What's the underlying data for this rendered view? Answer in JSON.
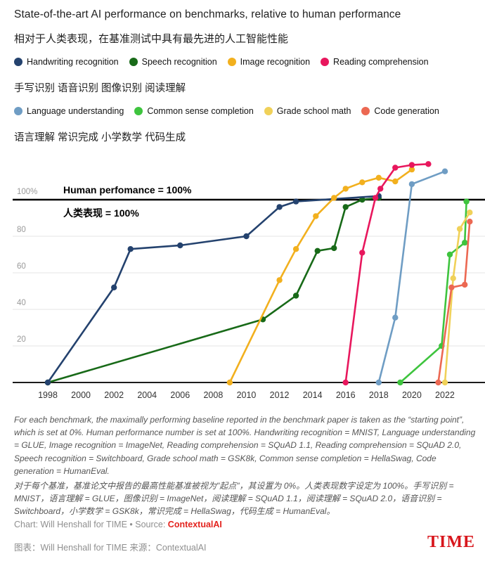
{
  "title": "State-of-the-art AI performance on benchmarks, relative to human performance",
  "title_cn": "相对于人类表现，在基准测试中具有最先进的人工智能性能",
  "legend": {
    "row1": [
      "Handwriting recognition",
      "Speech recognition",
      "Image recognition",
      "Reading comprehension"
    ],
    "row1_cn": "手写识别 语音识别 图像识别 阅读理解",
    "row2": [
      "Language understanding",
      "Common sense completion",
      "Grade school math",
      "Code generation"
    ],
    "row2_cn": "语言理解 常识完成 小学数学 代码生成"
  },
  "chart_data": {
    "type": "line",
    "xlim": [
      1995.9,
      2024.5
    ],
    "ylim": [
      0,
      125
    ],
    "x_ticks": [
      1998,
      2000,
      2002,
      2004,
      2006,
      2008,
      2010,
      2012,
      2014,
      2016,
      2018,
      2020,
      2022
    ],
    "y_gridlines": [
      20,
      40,
      60,
      80
    ],
    "grid": true,
    "legend_position": "top",
    "human_line": {
      "value": 100,
      "axis_label": "100%",
      "annotation": "Human perfomance = 100%",
      "annotation_cn": "人类表现 = 100%"
    },
    "series": [
      {
        "name": "Speech recognition",
        "color": "#186a18",
        "points": [
          [
            1998,
            0
          ],
          [
            2011,
            34.5
          ],
          [
            2013,
            47.5
          ],
          [
            2014.3,
            72
          ],
          [
            2015.3,
            73.5
          ],
          [
            2016,
            96
          ],
          [
            2017,
            100
          ],
          [
            2018,
            101
          ]
        ]
      },
      {
        "name": "Handwriting recognition",
        "color": "#24426e",
        "points": [
          [
            1998,
            0
          ],
          [
            2002,
            52
          ],
          [
            2003,
            73
          ],
          [
            2006,
            75
          ],
          [
            2010,
            80
          ],
          [
            2012,
            96
          ],
          [
            2013,
            99
          ],
          [
            2018,
            102
          ]
        ]
      },
      {
        "name": "Image recognition",
        "color": "#f2b01e",
        "points": [
          [
            2009,
            0
          ],
          [
            2012,
            56
          ],
          [
            2013,
            73
          ],
          [
            2014.2,
            91
          ],
          [
            2015.3,
            101
          ],
          [
            2016,
            106
          ],
          [
            2017,
            109.5
          ],
          [
            2018,
            112
          ],
          [
            2019,
            110
          ],
          [
            2020,
            116.5
          ]
        ]
      },
      {
        "name": "Reading comprehension",
        "color": "#e8175d",
        "points": [
          [
            2016,
            0
          ],
          [
            2017,
            71
          ],
          [
            2017.8,
            101
          ],
          [
            2018.1,
            106
          ],
          [
            2019,
            117.5
          ],
          [
            2020,
            119
          ],
          [
            2021,
            119.5
          ]
        ]
      },
      {
        "name": "Language understanding",
        "color": "#6f9dc4",
        "points": [
          [
            2018,
            0
          ],
          [
            2019,
            35.5
          ],
          [
            2020,
            108.5
          ],
          [
            2022,
            115.5
          ]
        ]
      },
      {
        "name": "Common sense completion",
        "color": "#3ec43e",
        "points": [
          [
            2019.3,
            0
          ],
          [
            2021.8,
            20
          ],
          [
            2022.3,
            70
          ],
          [
            2023.2,
            76.5
          ],
          [
            2023.3,
            99
          ]
        ]
      },
      {
        "name": "Grade school math",
        "color": "#f0d159",
        "points": [
          [
            2022,
            0
          ],
          [
            2022.5,
            57
          ],
          [
            2022.9,
            84
          ],
          [
            2023.5,
            93
          ]
        ]
      },
      {
        "name": "Code generation",
        "color": "#ec6852",
        "points": [
          [
            2021.6,
            0
          ],
          [
            2022.4,
            52
          ],
          [
            2023.2,
            53.5
          ],
          [
            2023.5,
            88
          ]
        ]
      }
    ]
  },
  "footnote_en": "For each benchmark, the maximally performing baseline reported in the benchmark paper is taken as the “starting point”, which is set at 0%. Human performance number is set at 100%. Handwriting recognition = MNIST, Language understanding = GLUE, Image recognition = ImageNet, Reading comprehension = SQuAD 1.1, Reading comprehension = SQuAD 2.0, Speech recognition = Switchboard, Grade school math = GSK8k, Common sense completion = HellaSwag, Code generation = HumanEval.",
  "footnote_cn": "对于每个基准，基准论文中报告的最高性能基准被视为\"起点\"，其设置为 0%。人类表现数字设定为 100%。手写识别 = MNIST，语言理解 = GLUE，图像识别 = ImageNet，阅读理解 = SQuAD 1.1，阅读理解 = SQuAD 2.0，语音识别 = Switchboard，小学数学 = GSK8k，常识完成 = HellaSwag，代码生成 = HumanEval。",
  "credits": {
    "en_prefix": "Chart: Will Henshall for TIME • Source: ",
    "en_source": "ContextualAI",
    "cn": "图表：Will Henshall for TIME 来源：ContextualAI",
    "brand": "TIME"
  },
  "colors": {
    "accent_red": "#e3231e",
    "brand_red": "#d8161c",
    "human_line_black": "#000000",
    "gridline_gray": "#e4e4e4",
    "axis_gray": "#1c1c1c"
  }
}
